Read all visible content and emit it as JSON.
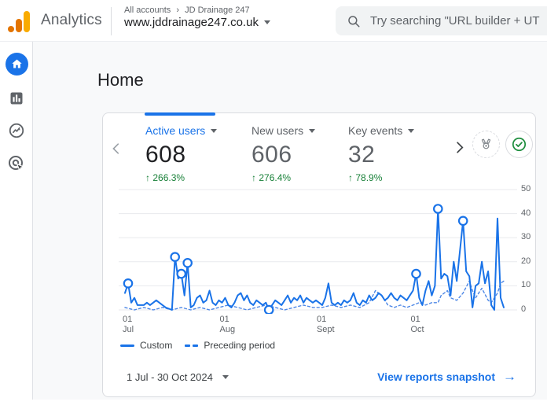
{
  "topbar": {
    "product": "Analytics",
    "breadcrumb": {
      "root": "All accounts",
      "separator": "›",
      "account": "JD Drainage 247"
    },
    "property": "www.jddrainage247.co.uk",
    "search_placeholder": "Try searching \"URL builder + UT"
  },
  "sidebar": {
    "items": [
      {
        "name": "home",
        "active": true
      },
      {
        "name": "reports",
        "active": false
      },
      {
        "name": "explore",
        "active": false
      },
      {
        "name": "advertising",
        "active": false
      }
    ]
  },
  "page": {
    "title": "Home"
  },
  "card": {
    "metrics": [
      {
        "label": "Active users",
        "value": "608",
        "delta_arrow": "↑",
        "delta": "266.3%",
        "active": true
      },
      {
        "label": "New users",
        "value": "606",
        "delta_arrow": "↑",
        "delta": "276.4%",
        "active": false
      },
      {
        "label": "Key events",
        "value": "32",
        "delta_arrow": "↑",
        "delta": "78.9%",
        "active": false
      }
    ],
    "legend": [
      {
        "label": "Custom",
        "style": "solid"
      },
      {
        "label": "Preceding period",
        "style": "dashed"
      }
    ],
    "date_range": "1 Jul - 30 Oct 2024",
    "cta": "View reports snapshot",
    "cta_arrow": "→"
  },
  "chart_data": {
    "type": "line",
    "title": "",
    "xlabel": "",
    "ylabel": "",
    "ylim": [
      0,
      50
    ],
    "yticks": [
      0,
      10,
      20,
      30,
      40,
      50
    ],
    "x_domain_days": [
      0,
      121
    ],
    "xticks": [
      {
        "day": 0,
        "line1": "01",
        "line2": "Jul"
      },
      {
        "day": 31,
        "line1": "01",
        "line2": "Aug"
      },
      {
        "day": 62,
        "line1": "01",
        "line2": "Sept"
      },
      {
        "day": 92,
        "line1": "01",
        "line2": "Oct"
      }
    ],
    "grid": true,
    "legend_position": "bottom-left",
    "series": [
      {
        "name": "Preceding period",
        "style": "dashed",
        "points": [
          [
            0,
            1
          ],
          [
            3,
            0
          ],
          [
            6,
            1
          ],
          [
            9,
            0
          ],
          [
            12,
            1
          ],
          [
            15,
            0
          ],
          [
            18,
            1
          ],
          [
            21,
            0
          ],
          [
            24,
            1
          ],
          [
            27,
            0
          ],
          [
            30,
            1
          ],
          [
            33,
            2
          ],
          [
            36,
            1
          ],
          [
            39,
            0
          ],
          [
            42,
            1
          ],
          [
            45,
            2
          ],
          [
            48,
            1
          ],
          [
            51,
            0
          ],
          [
            54,
            1
          ],
          [
            57,
            2
          ],
          [
            60,
            1
          ],
          [
            63,
            1
          ],
          [
            66,
            2
          ],
          [
            69,
            1
          ],
          [
            72,
            2
          ],
          [
            75,
            1
          ],
          [
            78,
            3
          ],
          [
            80,
            8
          ],
          [
            82,
            6
          ],
          [
            84,
            2
          ],
          [
            86,
            1
          ],
          [
            88,
            2
          ],
          [
            90,
            1
          ],
          [
            92,
            2
          ],
          [
            94,
            3
          ],
          [
            96,
            2
          ],
          [
            98,
            3
          ],
          [
            100,
            3
          ],
          [
            101,
            6
          ],
          [
            103,
            8
          ],
          [
            104,
            5
          ],
          [
            106,
            4
          ],
          [
            108,
            7
          ],
          [
            110,
            12
          ],
          [
            111,
            8
          ],
          [
            112,
            5
          ],
          [
            114,
            9
          ],
          [
            116,
            4
          ],
          [
            117,
            3
          ],
          [
            119,
            7
          ],
          [
            120,
            11
          ],
          [
            121,
            12
          ]
        ]
      },
      {
        "name": "Custom",
        "style": "solid",
        "points": [
          [
            0,
            7
          ],
          [
            1,
            11
          ],
          [
            2,
            3
          ],
          [
            3,
            5
          ],
          [
            4,
            2
          ],
          [
            5,
            2
          ],
          [
            6,
            2
          ],
          [
            7,
            3
          ],
          [
            8,
            2
          ],
          [
            10,
            4
          ],
          [
            12,
            2
          ],
          [
            13,
            1
          ],
          [
            15,
            0
          ],
          [
            16,
            22
          ],
          [
            17,
            13
          ],
          [
            18,
            15
          ],
          [
            19,
            6
          ],
          [
            20,
            19.5
          ],
          [
            21,
            1
          ],
          [
            22,
            2
          ],
          [
            23,
            5
          ],
          [
            24,
            6
          ],
          [
            25,
            3
          ],
          [
            26,
            4
          ],
          [
            27,
            8
          ],
          [
            28,
            3
          ],
          [
            29,
            2
          ],
          [
            30,
            4
          ],
          [
            31,
            3
          ],
          [
            32,
            5
          ],
          [
            33,
            2
          ],
          [
            34,
            1
          ],
          [
            35,
            3
          ],
          [
            36,
            6
          ],
          [
            37,
            7
          ],
          [
            38,
            4
          ],
          [
            39,
            6
          ],
          [
            40,
            3
          ],
          [
            41,
            2
          ],
          [
            42,
            4
          ],
          [
            43,
            3
          ],
          [
            44,
            2
          ],
          [
            45,
            3
          ],
          [
            46,
            0
          ],
          [
            47,
            2
          ],
          [
            48,
            4
          ],
          [
            49,
            3
          ],
          [
            50,
            2
          ],
          [
            51,
            4
          ],
          [
            52,
            6
          ],
          [
            53,
            3
          ],
          [
            54,
            5
          ],
          [
            55,
            4
          ],
          [
            56,
            6
          ],
          [
            57,
            3
          ],
          [
            58,
            5
          ],
          [
            59,
            4
          ],
          [
            60,
            3
          ],
          [
            61,
            4
          ],
          [
            62,
            3
          ],
          [
            63,
            2
          ],
          [
            64,
            5
          ],
          [
            65,
            11
          ],
          [
            66,
            3
          ],
          [
            67,
            2
          ],
          [
            68,
            3
          ],
          [
            69,
            2
          ],
          [
            70,
            4
          ],
          [
            71,
            3
          ],
          [
            72,
            4
          ],
          [
            73,
            7
          ],
          [
            74,
            3
          ],
          [
            75,
            2
          ],
          [
            76,
            4
          ],
          [
            77,
            3
          ],
          [
            78,
            6
          ],
          [
            79,
            4
          ],
          [
            80,
            5
          ],
          [
            81,
            7
          ],
          [
            82,
            6
          ],
          [
            83,
            4
          ],
          [
            84,
            5
          ],
          [
            85,
            7
          ],
          [
            86,
            5
          ],
          [
            87,
            4
          ],
          [
            88,
            6
          ],
          [
            89,
            5
          ],
          [
            90,
            4
          ],
          [
            91,
            6
          ],
          [
            92,
            8
          ],
          [
            93,
            15
          ],
          [
            94,
            5
          ],
          [
            95,
            2
          ],
          [
            96,
            8
          ],
          [
            97,
            12
          ],
          [
            98,
            6
          ],
          [
            99,
            10
          ],
          [
            100,
            42
          ],
          [
            101,
            13
          ],
          [
            102,
            15
          ],
          [
            103,
            14
          ],
          [
            104,
            6
          ],
          [
            105,
            20
          ],
          [
            106,
            12
          ],
          [
            108,
            37
          ],
          [
            109,
            16
          ],
          [
            110,
            14
          ],
          [
            111,
            1
          ],
          [
            112,
            10
          ],
          [
            113,
            11
          ],
          [
            114,
            20
          ],
          [
            115,
            11
          ],
          [
            116,
            16
          ],
          [
            117,
            2
          ],
          [
            118,
            0
          ],
          [
            119,
            38
          ],
          [
            120,
            5
          ],
          [
            121,
            1
          ]
        ]
      }
    ],
    "markers": [
      [
        1,
        11
      ],
      [
        16,
        22
      ],
      [
        18,
        15
      ],
      [
        20,
        19.5
      ],
      [
        46,
        0
      ],
      [
        93,
        15
      ],
      [
        100,
        42
      ],
      [
        108,
        37
      ]
    ],
    "colors": {
      "line": "#1a73e8",
      "preceding": "#4d87e6",
      "grid": "#e8eaed",
      "marker_fill": "#ffffff"
    }
  },
  "colors": {
    "accent_blue": "#1a73e8",
    "positive_green": "#188038",
    "logo_amber": "#f9ab00",
    "logo_orange": "#e37400",
    "border": "#dadce0",
    "bg_main": "#f8f9fa"
  }
}
